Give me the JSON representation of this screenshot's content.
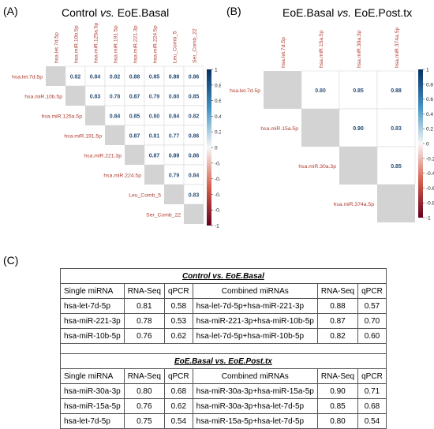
{
  "panels": {
    "a": {
      "letter": "(A)",
      "title_a": "Control ",
      "title_vs": "vs.",
      "title_b": " EoE.Basal"
    },
    "b": {
      "letter": "(B)",
      "title_a": "EoE.Basal ",
      "title_vs": "vs.",
      "title_b": " EoE.Post.tx"
    },
    "c": {
      "letter": "(C)"
    }
  },
  "chart_data": [
    {
      "type": "heatmap",
      "title": "Control vs. EoE.Basal",
      "labels": [
        "hsa.let.7d.5p",
        "hsa.miR.10b.5p",
        "hsa.miR.125a.5p",
        "hsa.miR.191.5p",
        "hsa.miR.221.3p",
        "hsa.miR.224.5p",
        "Leu_Comb_5",
        "Ser_Comb_22"
      ],
      "values": [
        [
          null,
          0.82,
          0.84,
          0.82,
          0.88,
          0.85,
          0.88,
          0.86
        ],
        [
          null,
          null,
          0.83,
          0.78,
          0.87,
          0.79,
          0.8,
          0.85
        ],
        [
          null,
          null,
          null,
          0.84,
          0.85,
          0.8,
          0.84,
          0.82
        ],
        [
          null,
          null,
          null,
          null,
          0.87,
          0.81,
          0.77,
          0.86
        ],
        [
          null,
          null,
          null,
          null,
          null,
          0.87,
          0.89,
          0.86
        ],
        [
          null,
          null,
          null,
          null,
          null,
          null,
          0.79,
          0.84
        ],
        [
          null,
          null,
          null,
          null,
          null,
          null,
          null,
          0.83
        ],
        [
          null,
          null,
          null,
          null,
          null,
          null,
          null,
          null
        ]
      ],
      "legend_ticks": [
        "1",
        "0.8",
        "0.6",
        "0.4",
        "0.2",
        "0",
        "-0.2",
        "-0.4",
        "-0.6",
        "-0.8",
        "-1"
      ],
      "colorscale": {
        "low": "#67001f",
        "mid": "#f7f7f7",
        "high": "#053061"
      },
      "legend_position": "right"
    },
    {
      "type": "heatmap",
      "title": "EoE.Basal vs. EoE.Post.tx",
      "labels": [
        "hsa.let.7d.5p",
        "hsa.miR.15a.5p",
        "hsa.miR.30a.3p",
        "hsa.miR.374a.5p"
      ],
      "values": [
        [
          null,
          0.8,
          0.85,
          0.88
        ],
        [
          null,
          null,
          0.9,
          0.83
        ],
        [
          null,
          null,
          null,
          0.85
        ],
        [
          null,
          null,
          null,
          null
        ]
      ],
      "legend_ticks": [
        "1",
        "0.8",
        "0.6",
        "0.4",
        "0.2",
        "0",
        "-0.2",
        "-0.4",
        "-0.6",
        "-0.8",
        "-1"
      ],
      "colorscale": {
        "low": "#67001f",
        "mid": "#f7f7f7",
        "high": "#053061"
      },
      "legend_position": "right"
    },
    {
      "type": "table",
      "sections": [
        {
          "title": "Control vs. EoE.Basal",
          "headers": [
            "Single miRNA",
            "RNA-Seq",
            "qPCR",
            "Combined miRNAs",
            "RNA-Seq",
            "qPCR"
          ],
          "rows": [
            [
              "hsa-let-7d-5p",
              "0.81",
              "0.58",
              "hsa-let-7d-5p+hsa-miR-221-3p",
              "0.88",
              "0.57"
            ],
            [
              "hsa-miR-221-3p",
              "0.78",
              "0.53",
              "hsa-miR-221-3p+hsa-miR-10b-5p",
              "0.87",
              "0.70"
            ],
            [
              "hsa-miR-10b-5p",
              "0.76",
              "0.62",
              "hsa-let-7d-5p+hsa-miR-10b-5p",
              "0.82",
              "0.60"
            ]
          ]
        },
        {
          "title": "EoE.Basal vs. EoE.Post.tx",
          "headers": [
            "Single miRNA",
            "RNA-Seq",
            "qPCR",
            "Combined miRNAs",
            "RNA-Seq",
            "qPCR"
          ],
          "rows": [
            [
              "hsa-miR-30a-3p",
              "0.80",
              "0.68",
              "hsa-miR-30a-3p+hsa-miR-15a-5p",
              "0.90",
              "0.71"
            ],
            [
              "hsa-miR-15a-5p",
              "0.76",
              "0.62",
              "hsa-miR-30a-3p+hsa-let-7d-5p",
              "0.85",
              "0.68"
            ],
            [
              "hsa-let-7d-5p",
              "0.75",
              "0.54",
              "hsa-miR-15a-5p+hsa-let-7d-5p",
              "0.80",
              "0.54"
            ]
          ]
        }
      ]
    }
  ]
}
